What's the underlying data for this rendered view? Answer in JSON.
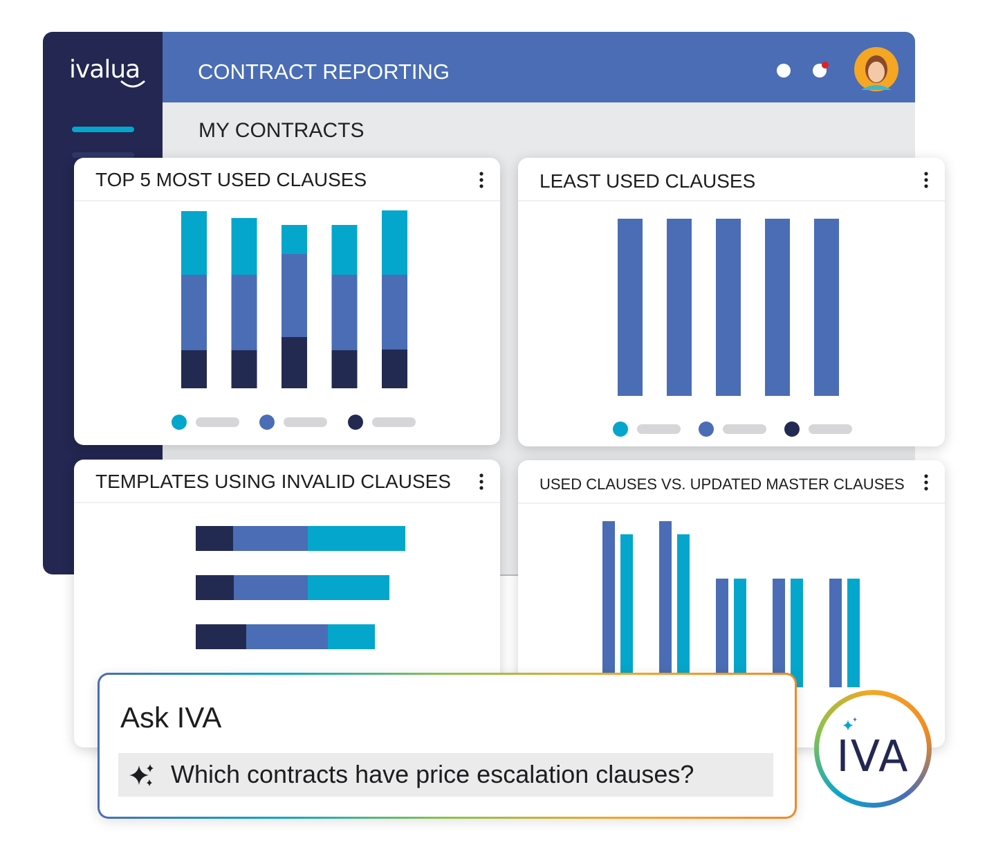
{
  "app": {
    "logo": "ivalua",
    "title": "CONTRACT REPORTING",
    "subtitle": "MY CONTRACTS"
  },
  "widgets": [
    {
      "title": "TOP 5 MOST USED CLAUSES",
      "chart": {
        "type": "stacked-bar",
        "legend": [
          "#05a6cc",
          "#4a6db5",
          "#232a52"
        ],
        "series": [
          {
            "color": "#232a52",
            "values": [
              55,
              55,
              74,
              55,
              56
            ]
          },
          {
            "color": "#4a6db5",
            "values": [
              109,
              109,
              120,
              109,
              108
            ]
          },
          {
            "color": "#05a6cc",
            "values": [
              92,
              82,
              42,
              72,
              93
            ]
          }
        ]
      }
    },
    {
      "title": "LEAST USED CLAUSES",
      "chart": {
        "type": "bar",
        "legend": [
          "#05a6cc",
          "#4a6db5",
          "#232a52"
        ],
        "series": [
          {
            "color": "#4a6db5",
            "values": [
              256,
              256,
              256,
              256,
              256
            ]
          }
        ]
      }
    },
    {
      "title": "TEMPLATES USING INVALID CLAUSES",
      "chart": {
        "type": "stacked-hbar",
        "series": [
          {
            "color": "#232a52",
            "values": [
              54,
              55,
              73
            ]
          },
          {
            "color": "#4a6db5",
            "values": [
              108,
              107,
              118
            ]
          },
          {
            "color": "#05a6cc",
            "values": [
              141,
              118,
              68
            ]
          }
        ]
      }
    },
    {
      "title": "USED CLAUSES VS. UPDATED MASTER CLAUSES",
      "chart": {
        "type": "grouped-bar",
        "series": [
          {
            "color": "#4a6db5",
            "values": [
              240,
              240,
              157,
              157,
              157
            ]
          },
          {
            "color": "#05a6cc",
            "values": [
              221,
              221,
              157,
              157,
              157
            ]
          }
        ]
      }
    }
  ],
  "assistant": {
    "title": "Ask IVA",
    "prompt": "Which contracts have price escalation clauses?",
    "badge": "IVA"
  }
}
